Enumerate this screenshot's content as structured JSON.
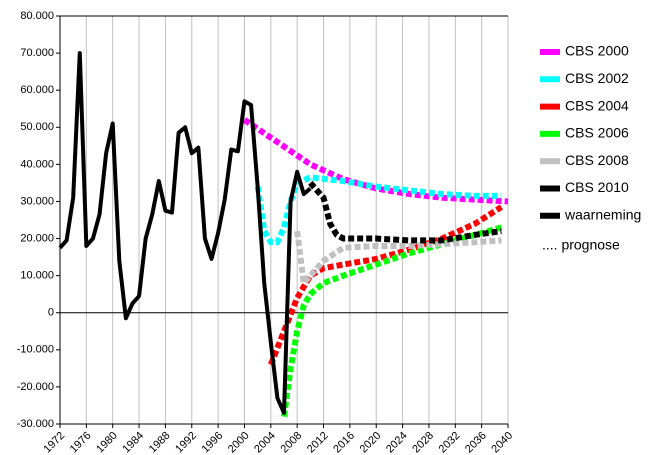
{
  "chart_data": {
    "type": "line",
    "xlim": [
      1972,
      2040
    ],
    "xticks": [
      1972,
      1976,
      1980,
      1984,
      1988,
      1992,
      1996,
      2000,
      2004,
      2008,
      2012,
      2016,
      2020,
      2024,
      2028,
      2032,
      2036,
      2040
    ],
    "ylim": [
      -30000,
      80000
    ],
    "yticks": [
      {
        "value": -30000,
        "label": "-30.000"
      },
      {
        "value": -20000,
        "label": "-20.000"
      },
      {
        "value": -10000,
        "label": "-10.000"
      },
      0,
      {
        "value": 10000,
        "label": "10.000"
      },
      {
        "value": 20000,
        "label": "20.000"
      },
      {
        "value": 30000,
        "label": "30.000"
      },
      {
        "value": 40000,
        "label": "40.000"
      },
      {
        "value": 50000,
        "label": "50.000"
      },
      {
        "value": 60000,
        "label": "60.000"
      },
      {
        "value": 70000,
        "label": "70.000"
      },
      {
        "value": 80000,
        "label": "80.000"
      }
    ],
    "grid": true,
    "series": [
      {
        "name": "CBS 2000",
        "color": "#ff00ff",
        "dashed": true,
        "x": [
          2000,
          2005,
          2010,
          2015,
          2020,
          2025,
          2030,
          2035,
          2040
        ],
        "values": [
          52000,
          46000,
          40000,
          36000,
          33500,
          32000,
          31000,
          30500,
          30000
        ]
      },
      {
        "name": "CBS 2002",
        "color": "#00ffff",
        "dashed": true,
        "x": [
          2002,
          2003,
          2004,
          2005,
          2006,
          2007,
          2008,
          2010,
          2015,
          2020,
          2025,
          2030,
          2035,
          2039
        ],
        "values": [
          34000,
          22000,
          19000,
          19000,
          23000,
          30000,
          35000,
          36500,
          35500,
          34000,
          33000,
          32000,
          31500,
          31500
        ]
      },
      {
        "name": "CBS 2004",
        "color": "#ff0000",
        "dashed": true,
        "x": [
          2004,
          2006,
          2008,
          2010,
          2012,
          2015,
          2020,
          2025,
          2030,
          2035,
          2039
        ],
        "values": [
          -14000,
          -5000,
          4000,
          10000,
          12000,
          13000,
          14500,
          17000,
          20000,
          24000,
          28500
        ]
      },
      {
        "name": "CBS 2006",
        "color": "#00ff00",
        "dashed": true,
        "x": [
          2006,
          2007,
          2008,
          2009,
          2010,
          2012,
          2015,
          2020,
          2025,
          2030,
          2035,
          2039
        ],
        "values": [
          -28000,
          -15000,
          -5000,
          2000,
          5000,
          8000,
          10000,
          13000,
          16000,
          18500,
          21000,
          23000
        ]
      },
      {
        "name": "CBS 2008",
        "color": "#c0c0c0",
        "dashed": true,
        "x": [
          2008,
          2009,
          2010,
          2012,
          2015,
          2020,
          2025,
          2030,
          2035,
          2039
        ],
        "values": [
          22000,
          8000,
          10000,
          14000,
          17500,
          18000,
          18000,
          18500,
          19000,
          19500
        ]
      },
      {
        "name": "CBS 2010",
        "color": "#000000",
        "dashed": true,
        "x": [
          2010,
          2011,
          2012,
          2013,
          2014,
          2015,
          2016,
          2020,
          2025,
          2030,
          2035,
          2039
        ],
        "values": [
          35000,
          33000,
          31000,
          24000,
          21000,
          20000,
          20000,
          20000,
          19500,
          19500,
          21000,
          22000
        ]
      },
      {
        "name": "waarneming",
        "color": "#000000",
        "dashed": false,
        "x": [
          1972,
          1973,
          1974,
          1975,
          1976,
          1977,
          1978,
          1979,
          1980,
          1981,
          1982,
          1983,
          1984,
          1985,
          1986,
          1987,
          1988,
          1989,
          1990,
          1991,
          1992,
          1993,
          1994,
          1995,
          1996,
          1997,
          1998,
          1999,
          2000,
          2001,
          2002,
          2003,
          2004,
          2005,
          2006,
          2007,
          2008,
          2009,
          2010
        ],
        "values": [
          17500,
          19500,
          31000,
          70000,
          18000,
          20000,
          26500,
          43000,
          51000,
          14000,
          -1500,
          2500,
          4500,
          20000,
          26500,
          35500,
          27500,
          27000,
          48500,
          50000,
          43000,
          44500,
          20000,
          14500,
          21500,
          30500,
          44000,
          43500,
          57000,
          56000,
          34000,
          8000,
          -8000,
          -23000,
          -27000,
          30000,
          38000,
          32000,
          33500
        ]
      }
    ],
    "legend_note": ".... prognose"
  }
}
